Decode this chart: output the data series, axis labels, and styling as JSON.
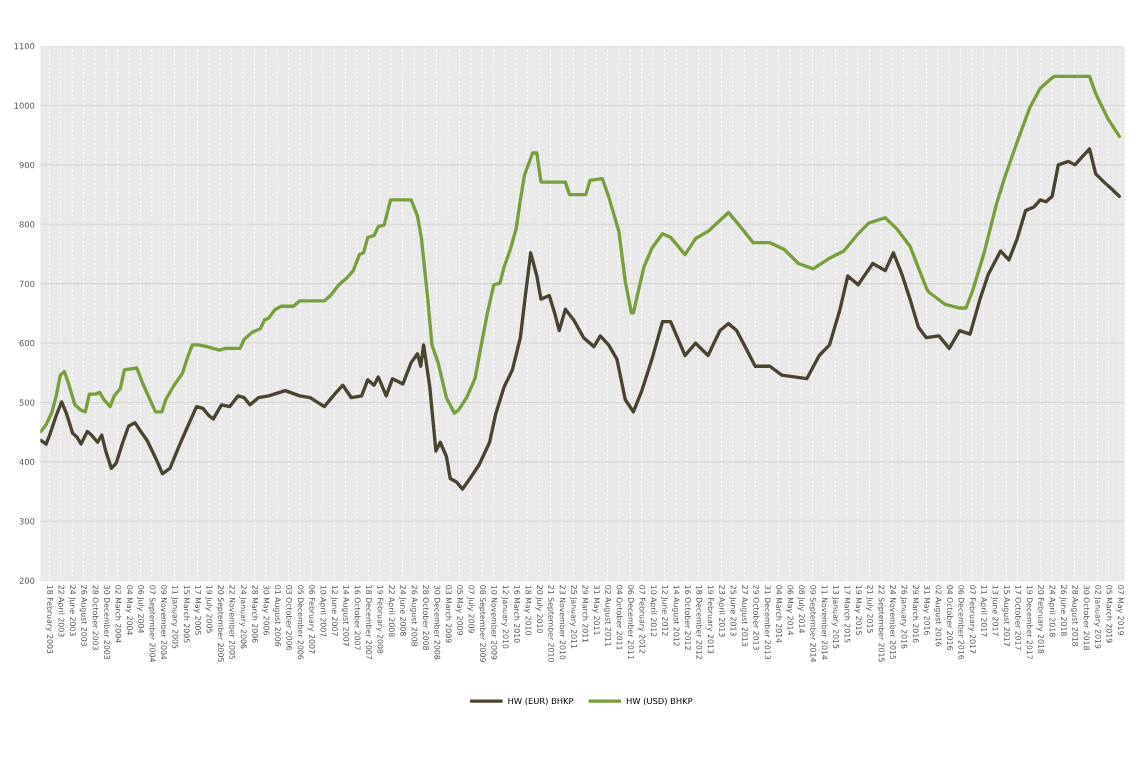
{
  "chart_data": {
    "type": "line",
    "xlim": [
      "2002-12-27",
      "2019-06-01"
    ],
    "ylim": [
      200,
      1100
    ],
    "yticks": [
      200,
      300,
      400,
      500,
      600,
      700,
      800,
      900,
      1000,
      1100
    ],
    "xticks": [
      {
        "value": "2003-02-18",
        "label": "18 February 2003"
      },
      {
        "value": "2003-04-22",
        "label": "22 April 2003"
      },
      {
        "value": "2003-06-24",
        "label": "24 June 2003"
      },
      {
        "value": "2003-08-26",
        "label": "26 August 2003"
      },
      {
        "value": "2003-10-28",
        "label": "28 October 2003"
      },
      {
        "value": "2003-12-30",
        "label": "30 December 2003"
      },
      {
        "value": "2004-03-02",
        "label": "02 March 2004"
      },
      {
        "value": "2004-05-04",
        "label": "04 May 2004"
      },
      {
        "value": "2004-07-06",
        "label": "06 July 2004"
      },
      {
        "value": "2004-09-07",
        "label": "07 September 2004"
      },
      {
        "value": "2004-11-09",
        "label": "09 November 2004"
      },
      {
        "value": "2005-01-11",
        "label": "11 January 2005"
      },
      {
        "value": "2005-03-15",
        "label": "15 March 2005"
      },
      {
        "value": "2005-05-17",
        "label": "17 May 2005"
      },
      {
        "value": "2005-07-19",
        "label": "19 July 2005"
      },
      {
        "value": "2005-09-20",
        "label": "20 September 2005"
      },
      {
        "value": "2005-11-22",
        "label": "22 November 2005"
      },
      {
        "value": "2006-01-24",
        "label": "24 January 2006"
      },
      {
        "value": "2006-03-28",
        "label": "28 March 2006"
      },
      {
        "value": "2006-05-30",
        "label": "30 May 2006"
      },
      {
        "value": "2006-08-01",
        "label": "01 August 2006"
      },
      {
        "value": "2006-10-03",
        "label": "03 October 2006"
      },
      {
        "value": "2006-12-05",
        "label": "05 December 2006"
      },
      {
        "value": "2007-02-06",
        "label": "06 February 2007"
      },
      {
        "value": "2007-04-10",
        "label": "10 April 2007"
      },
      {
        "value": "2007-06-12",
        "label": "12 June 2007"
      },
      {
        "value": "2007-08-14",
        "label": "14 August 2007"
      },
      {
        "value": "2007-10-16",
        "label": "16 October 2007"
      },
      {
        "value": "2007-12-18",
        "label": "18 December 2007"
      },
      {
        "value": "2008-02-19",
        "label": "19 February 2008"
      },
      {
        "value": "2008-04-22",
        "label": "22 April 2008"
      },
      {
        "value": "2008-06-24",
        "label": "24 June 2008"
      },
      {
        "value": "2008-08-26",
        "label": "26 August 2008"
      },
      {
        "value": "2008-10-28",
        "label": "28 October 2008"
      },
      {
        "value": "2008-12-30",
        "label": "30 December 2008"
      },
      {
        "value": "2009-03-03",
        "label": "03 March 2009"
      },
      {
        "value": "2009-05-05",
        "label": "05 May 2009"
      },
      {
        "value": "2009-07-07",
        "label": "07 July 2009"
      },
      {
        "value": "2009-09-08",
        "label": "08 September 2009"
      },
      {
        "value": "2009-11-10",
        "label": "10 November 2009"
      },
      {
        "value": "2010-01-12",
        "label": "12 January 2010"
      },
      {
        "value": "2010-03-16",
        "label": "16 March 2010"
      },
      {
        "value": "2010-05-18",
        "label": "18 May 2010"
      },
      {
        "value": "2010-07-20",
        "label": "20 July 2010"
      },
      {
        "value": "2010-09-21",
        "label": "21 September 2010"
      },
      {
        "value": "2010-11-23",
        "label": "23 November 2010"
      },
      {
        "value": "2011-01-25",
        "label": "25 January 2011"
      },
      {
        "value": "2011-03-29",
        "label": "29 March 2011"
      },
      {
        "value": "2011-05-31",
        "label": "31 May 2011"
      },
      {
        "value": "2011-08-02",
        "label": "02 August 2011"
      },
      {
        "value": "2011-10-04",
        "label": "04 October 2011"
      },
      {
        "value": "2011-12-06",
        "label": "06 December 2011"
      },
      {
        "value": "2012-02-07",
        "label": "07 February 2012"
      },
      {
        "value": "2012-04-10",
        "label": "10 April 2012"
      },
      {
        "value": "2012-06-12",
        "label": "12 June 2012"
      },
      {
        "value": "2012-08-14",
        "label": "14 August 2012"
      },
      {
        "value": "2012-10-16",
        "label": "16 October 2012"
      },
      {
        "value": "2012-12-18",
        "label": "18 December 2012"
      },
      {
        "value": "2013-02-19",
        "label": "19 February 2013"
      },
      {
        "value": "2013-04-23",
        "label": "23 April 2013"
      },
      {
        "value": "2013-06-25",
        "label": "25 June 2013"
      },
      {
        "value": "2013-08-27",
        "label": "27 August 2013"
      },
      {
        "value": "2013-10-29",
        "label": "29 October 2013"
      },
      {
        "value": "2013-12-31",
        "label": "31 December 2013"
      },
      {
        "value": "2014-03-04",
        "label": "04 March 2014"
      },
      {
        "value": "2014-05-06",
        "label": "06 May 2014"
      },
      {
        "value": "2014-07-08",
        "label": "08 July 2014"
      },
      {
        "value": "2014-09-09",
        "label": "09 September 2014"
      },
      {
        "value": "2014-11-11",
        "label": "11 November 2014"
      },
      {
        "value": "2015-01-13",
        "label": "13 January 2015"
      },
      {
        "value": "2015-03-17",
        "label": "17 March 2015"
      },
      {
        "value": "2015-05-19",
        "label": "19 May 2015"
      },
      {
        "value": "2015-07-21",
        "label": "21 July 2015"
      },
      {
        "value": "2015-09-22",
        "label": "22 September 2015"
      },
      {
        "value": "2015-11-24",
        "label": "24 November 2015"
      },
      {
        "value": "2016-01-26",
        "label": "26 January 2016"
      },
      {
        "value": "2016-03-29",
        "label": "29 March 2016"
      },
      {
        "value": "2016-05-31",
        "label": "31 May 2016"
      },
      {
        "value": "2016-08-02",
        "label": "02 August 2016"
      },
      {
        "value": "2016-10-04",
        "label": "04 October 2016"
      },
      {
        "value": "2016-12-06",
        "label": "06 December 2016"
      },
      {
        "value": "2017-02-07",
        "label": "07 February 2017"
      },
      {
        "value": "2017-04-11",
        "label": "11 April 2017"
      },
      {
        "value": "2017-06-13",
        "label": "13 June 2017"
      },
      {
        "value": "2017-08-15",
        "label": "15 August 2017"
      },
      {
        "value": "2017-10-17",
        "label": "17 October 2017"
      },
      {
        "value": "2017-12-19",
        "label": "19 December 2017"
      },
      {
        "value": "2018-02-20",
        "label": "20 February 2018"
      },
      {
        "value": "2018-04-24",
        "label": "24 April 2018"
      },
      {
        "value": "2018-06-26",
        "label": "26 June 2018"
      },
      {
        "value": "2018-08-28",
        "label": "28 August 2018"
      },
      {
        "value": "2018-10-30",
        "label": "30 October 2018"
      },
      {
        "value": "2019-01-02",
        "label": "02 January 2019"
      },
      {
        "value": "2019-03-05",
        "label": "05 March 2019"
      },
      {
        "value": "2019-05-07",
        "label": "07 May 2019"
      }
    ],
    "grid": true,
    "legend": "bottom",
    "line_style": "solid",
    "marker": "none",
    "series": [
      {
        "name": "HW (EUR) BHKP",
        "color": "#4a4330",
        "x": [
          "2003-01-02",
          "2003-02-01",
          "2003-02-23",
          "2003-03-28",
          "2003-04-27",
          "2003-05-24",
          "2003-06-27",
          "2003-07-20",
          "2003-08-12",
          "2003-09-16",
          "2003-10-09",
          "2003-11-12",
          "2003-12-05",
          "2003-12-27",
          "2004-01-27",
          "2004-02-23",
          "2004-03-27",
          "2004-05-01",
          "2004-06-05",
          "2004-07-08",
          "2004-08-12",
          "2004-09-27",
          "2004-11-05",
          "2004-12-16",
          "2005-02-01",
          "2005-03-16",
          "2005-05-12",
          "2005-06-16",
          "2005-07-19",
          "2005-08-12",
          "2005-09-27",
          "2005-11-12",
          "2005-12-27",
          "2006-01-30",
          "2006-03-04",
          "2006-04-19",
          "2006-06-15",
          "2006-09-15",
          "2006-12-04",
          "2007-01-30",
          "2007-04-19",
          "2007-06-15",
          "2007-07-30",
          "2007-09-15",
          "2007-11-11",
          "2007-12-15",
          "2008-01-19",
          "2008-02-11",
          "2008-03-26",
          "2008-04-30",
          "2008-06-26",
          "2008-08-11",
          "2008-09-15",
          "2008-10-03",
          "2008-10-19",
          "2008-11-22",
          "2008-12-26",
          "2009-01-19",
          "2009-02-22",
          "2009-03-15",
          "2009-04-19",
          "2009-05-22",
          "2009-07-07",
          "2009-08-22",
          "2009-10-19",
          "2009-11-22",
          "2010-01-07",
          "2010-02-22",
          "2010-04-07",
          "2010-04-30",
          "2010-06-03",
          "2010-07-07",
          "2010-07-30",
          "2010-09-14",
          "2010-10-16",
          "2010-11-08",
          "2010-12-12",
          "2011-01-27",
          "2011-03-23",
          "2011-05-19",
          "2011-06-23",
          "2011-08-08",
          "2011-09-23",
          "2011-11-08",
          "2011-12-23",
          "2012-02-08",
          "2012-04-04",
          "2012-06-01",
          "2012-07-16",
          "2012-10-04",
          "2012-12-01",
          "2013-02-08",
          "2013-04-15",
          "2013-06-01",
          "2013-07-16",
          "2013-09-01",
          "2013-10-27",
          "2014-01-16",
          "2014-03-23",
          "2014-05-30",
          "2014-08-08",
          "2014-10-16",
          "2014-12-12",
          "2015-02-08",
          "2015-03-23",
          "2015-05-19",
          "2015-08-08",
          "2015-10-16",
          "2015-11-30",
          "2016-01-16",
          "2016-03-01",
          "2016-04-16",
          "2016-05-30",
          "2016-08-08",
          "2016-10-04",
          "2016-11-30",
          "2017-01-27",
          "2017-03-23",
          "2017-05-08",
          "2017-07-15",
          "2017-08-30",
          "2017-10-15",
          "2017-11-30",
          "2018-01-15",
          "2018-02-19",
          "2018-03-23",
          "2018-04-26",
          "2018-05-30",
          "2018-07-26",
          "2018-08-30",
          "2018-10-04",
          "2018-11-19",
          "2018-12-23",
          "2019-02-07",
          "2019-03-23",
          "2019-05-03"
        ],
        "values": [
          436,
          430,
          448,
          478,
          501,
          481,
          448,
          442,
          430,
          451,
          445,
          433,
          445,
          418,
          389,
          398,
          430,
          460,
          466,
          451,
          436,
          407,
          380,
          389,
          424,
          454,
          493,
          490,
          478,
          472,
          496,
          493,
          511,
          508,
          496,
          508,
          511,
          520,
          511,
          508,
          493,
          514,
          529,
          508,
          511,
          538,
          529,
          543,
          511,
          540,
          531,
          567,
          582,
          561,
          597,
          526,
          418,
          433,
          409,
          372,
          366,
          354,
          374,
          395,
          433,
          481,
          526,
          555,
          609,
          668,
          752,
          713,
          674,
          680,
          648,
          621,
          657,
          639,
          609,
          594,
          612,
          597,
          573,
          505,
          484,
          520,
          573,
          636,
          636,
          579,
          600,
          579,
          621,
          633,
          621,
          594,
          561,
          561,
          546,
          543,
          540,
          579,
          597,
          657,
          713,
          698,
          734,
          722,
          752,
          716,
          674,
          627,
          609,
          612,
          591,
          621,
          615,
          674,
          716,
          755,
          740,
          776,
          823,
          829,
          841,
          838,
          847,
          900,
          906,
          900,
          912,
          927,
          885,
          871,
          859,
          847
        ]
      },
      {
        "name": "HW (USD) BHKP",
        "color": "#77a03c",
        "x": [
          "2003-01-02",
          "2003-02-01",
          "2003-03-05",
          "2003-03-28",
          "2003-04-20",
          "2003-05-12",
          "2003-06-05",
          "2003-07-09",
          "2003-08-12",
          "2003-09-05",
          "2003-09-27",
          "2003-11-01",
          "2003-11-24",
          "2003-12-16",
          "2004-01-20",
          "2004-02-12",
          "2004-03-16",
          "2004-04-08",
          "2004-06-16",
          "2004-07-20",
          "2004-08-23",
          "2004-09-27",
          "2004-11-01",
          "2004-11-23",
          "2005-01-08",
          "2005-02-23",
          "2005-03-27",
          "2005-04-19",
          "2005-05-23",
          "2005-07-08",
          "2005-09-16",
          "2005-10-19",
          "2006-01-08",
          "2006-01-30",
          "2006-03-15",
          "2006-04-30",
          "2006-05-23",
          "2006-06-15",
          "2006-07-19",
          "2006-08-23",
          "2006-10-30",
          "2006-12-04",
          "2007-04-19",
          "2007-05-23",
          "2007-07-08",
          "2007-08-23",
          "2007-09-26",
          "2007-10-30",
          "2007-11-22",
          "2007-12-15",
          "2008-01-19",
          "2008-02-11",
          "2008-03-15",
          "2008-04-19",
          "2008-08-11",
          "2008-09-15",
          "2008-10-07",
          "2008-11-11",
          "2008-12-04",
          "2009-01-07",
          "2009-02-22",
          "2009-04-07",
          "2009-04-30",
          "2009-06-14",
          "2009-07-30",
          "2009-09-03",
          "2009-10-07",
          "2009-11-11",
          "2009-12-15",
          "2010-01-07",
          "2010-02-11",
          "2010-03-15",
          "2010-04-07",
          "2010-04-30",
          "2010-06-14",
          "2010-07-07",
          "2010-07-30",
          "2010-10-16",
          "2010-12-12",
          "2011-01-04",
          "2011-04-04",
          "2011-04-27",
          "2011-07-04",
          "2011-08-08",
          "2011-10-04",
          "2011-11-08",
          "2011-12-12",
          "2011-12-23",
          "2012-02-19",
          "2012-04-04",
          "2012-06-01",
          "2012-07-16",
          "2012-10-04",
          "2012-12-01",
          "2013-02-08",
          "2013-06-01",
          "2013-08-19",
          "2013-10-16",
          "2014-01-16",
          "2014-04-04",
          "2014-06-23",
          "2014-09-12",
          "2014-12-12",
          "2015-03-01",
          "2015-05-19",
          "2015-07-16",
          "2015-10-16",
          "2015-12-23",
          "2016-03-01",
          "2016-05-30",
          "2016-06-12",
          "2016-09-12",
          "2016-11-30",
          "2017-01-04",
          "2017-02-08",
          "2017-04-15",
          "2017-06-23",
          "2017-08-08",
          "2017-10-15",
          "2017-12-23",
          "2018-02-19",
          "2018-04-15",
          "2018-05-08",
          "2018-11-19",
          "2018-12-23",
          "2019-02-28",
          "2019-05-03"
        ],
        "values": [
          451,
          463,
          484,
          511,
          546,
          552,
          531,
          496,
          487,
          484,
          514,
          514,
          517,
          505,
          493,
          511,
          523,
          555,
          558,
          531,
          508,
          484,
          484,
          505,
          529,
          549,
          579,
          597,
          597,
          594,
          588,
          591,
          591,
          606,
          618,
          624,
          639,
          642,
          656,
          662,
          662,
          671,
          671,
          680,
          698,
          710,
          722,
          749,
          752,
          778,
          781,
          796,
          799,
          841,
          841,
          814,
          776,
          674,
          597,
          567,
          508,
          482,
          487,
          508,
          540,
          597,
          651,
          698,
          701,
          728,
          758,
          793,
          841,
          883,
          920,
          920,
          871,
          871,
          871,
          850,
          850,
          874,
          877,
          847,
          788,
          704,
          651,
          651,
          728,
          760,
          784,
          778,
          749,
          776,
          788,
          820,
          791,
          769,
          769,
          758,
          734,
          725,
          743,
          755,
          784,
          802,
          811,
          791,
          763,
          693,
          686,
          665,
          659,
          659,
          686,
          752,
          835,
          880,
          939,
          996,
          1029,
          1044,
          1049,
          1049,
          1020,
          978,
          948
        ]
      }
    ]
  }
}
